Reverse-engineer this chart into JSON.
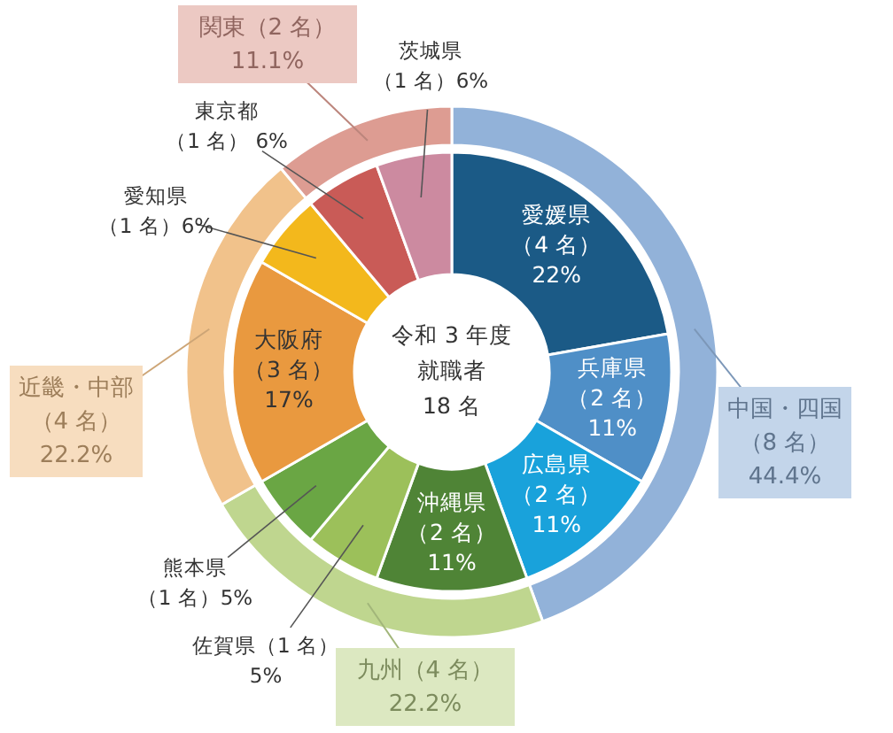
{
  "chart_data": [
    {
      "type": "donut",
      "categories": [
        "愛媛県",
        "兵庫県",
        "広島県",
        "沖縄県",
        "佐賀県",
        "熊本県",
        "大阪府",
        "愛知県",
        "東京都",
        "茨城県"
      ],
      "values": [
        4,
        2,
        2,
        2,
        1,
        1,
        3,
        1,
        1,
        1
      ],
      "colors": [
        "#1b5a86",
        "#4f8fc7",
        "#19a2db",
        "#4f8436",
        "#9cc05a",
        "#6aa644",
        "#e9993f",
        "#f3b81c",
        "#c95b57",
        "#cc8aa0"
      ],
      "value_labels": [
        "\n（4 名）\n22%",
        "\n（2 名）\n11%",
        "\n（2 名）\n11%",
        "\n（2 名）\n11%",
        "（1 名）\n5%",
        "\n（1 名）5%",
        "\n（3 名）\n17%",
        "\n（1 名）6%",
        "\n（1 名） 6%",
        "\n（1 名）6%"
      ],
      "annotations": [
        "令和 3 年度",
        "就職者",
        "18 名"
      ]
    },
    {
      "type": "donut",
      "categories": [
        "中国・四国",
        "九州",
        "近畿・中部",
        "関東"
      ],
      "values": [
        8,
        4,
        4,
        2
      ],
      "colors": [
        "#92b2d9",
        "#bfd68f",
        "#f1c28b",
        "#dd9c92"
      ],
      "value_labels": [
        "\n（8 名）\n44.4%",
        "（4 名）\n22.2%",
        "\n（4 名）\n22.2%",
        "（2 名）\n11.1%"
      ]
    }
  ]
}
